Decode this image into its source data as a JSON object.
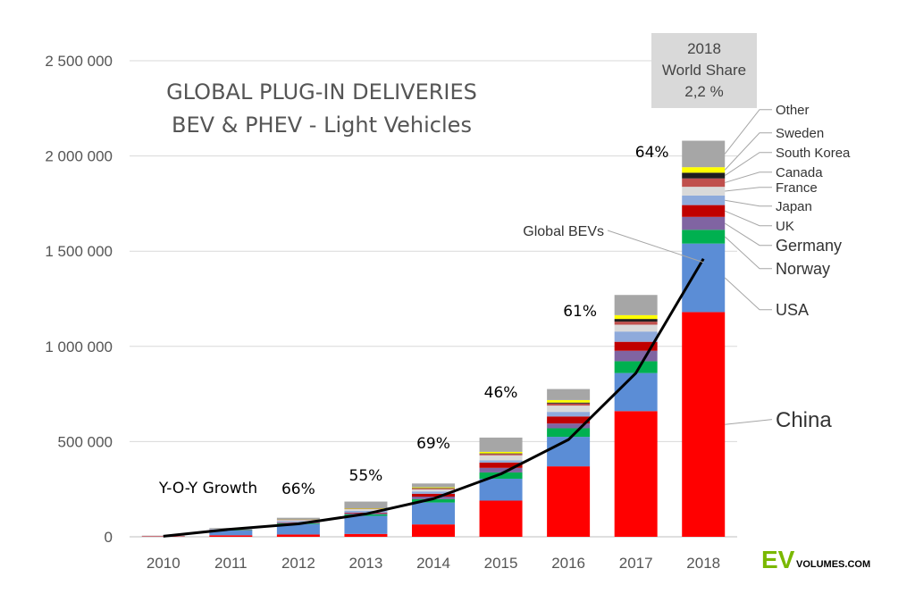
{
  "chart_data": {
    "type": "bar",
    "stacked": true,
    "title": "GLOBAL PLUG-IN DELIVERIES",
    "subtitle": "BEV & PHEV - Light Vehicles",
    "xlabel": "",
    "ylabel": "",
    "ylim": [
      0,
      2500000
    ],
    "yticks": [
      0,
      500000,
      1000000,
      1500000,
      2000000,
      2500000
    ],
    "ytick_labels": [
      "0",
      "500 000",
      "1 000 000",
      "1 500 000",
      "2 000 000",
      "2 500 000"
    ],
    "categories": [
      "2010",
      "2011",
      "2012",
      "2013",
      "2014",
      "2015",
      "2016",
      "2017",
      "2018"
    ],
    "series": [
      {
        "name": "China",
        "color": "#ff0000",
        "values": [
          2000,
          8000,
          12000,
          15000,
          65000,
          190000,
          370000,
          660000,
          1180000
        ]
      },
      {
        "name": "USA",
        "color": "#5b8dd6",
        "values": [
          1000,
          25000,
          55000,
          95000,
          115000,
          115000,
          155000,
          200000,
          360000
        ]
      },
      {
        "name": "Norway",
        "color": "#00b050",
        "values": [
          0,
          2000,
          4000,
          8000,
          18000,
          33000,
          45000,
          62000,
          72000
        ]
      },
      {
        "name": "Germany",
        "color": "#8064a2",
        "values": [
          0,
          2000,
          3000,
          6000,
          13000,
          24000,
          25000,
          55000,
          68000
        ]
      },
      {
        "name": "UK",
        "color": "#c00000",
        "values": [
          0,
          1000,
          2000,
          3000,
          15000,
          28000,
          37000,
          47000,
          62000
        ]
      },
      {
        "name": "Japan",
        "color": "#8eaadb",
        "values": [
          0,
          2000,
          6000,
          9000,
          12000,
          11000,
          24000,
          54000,
          50000
        ]
      },
      {
        "name": "France",
        "color": "#d9d9d9",
        "values": [
          0,
          2000,
          6000,
          9000,
          11000,
          27000,
          33000,
          36000,
          46000
        ]
      },
      {
        "name": "Canada",
        "color": "#c0504d",
        "values": [
          0,
          0,
          2000,
          2000,
          5000,
          7000,
          11000,
          16000,
          44000
        ]
      },
      {
        "name": "South Korea",
        "color": "#1f1f1f",
        "values": [
          0,
          0,
          1000,
          1000,
          2000,
          3000,
          5000,
          14000,
          30000
        ]
      },
      {
        "name": "Sweden",
        "color": "#ffff00",
        "values": [
          0,
          0,
          1000,
          2000,
          4000,
          8000,
          13000,
          20000,
          29000
        ]
      },
      {
        "name": "Other",
        "color": "#a6a6a6",
        "values": [
          3000,
          4000,
          8000,
          35000,
          20000,
          75000,
          58000,
          106000,
          139000
        ]
      }
    ],
    "line": {
      "name": "Global BEVs",
      "color": "#000000",
      "values": [
        3000,
        40000,
        68000,
        120000,
        200000,
        330000,
        510000,
        860000,
        1460000
      ]
    },
    "growth_labels": [
      {
        "year": "2012",
        "text": "66%"
      },
      {
        "year": "2013",
        "text": "55%"
      },
      {
        "year": "2014",
        "text": "69%"
      },
      {
        "year": "2015",
        "text": "46%"
      },
      {
        "year": "2016",
        "text": "61%"
      },
      {
        "year": "2017",
        "text": "64%"
      }
    ],
    "growth_caption": "Y-O-Y Growth",
    "world_share": [
      "2018",
      "World Share",
      "2,2 %"
    ],
    "legend": "right of 2018 bar"
  },
  "brand": {
    "ev": "EV",
    "volumes": "VOLUMES.COM"
  }
}
